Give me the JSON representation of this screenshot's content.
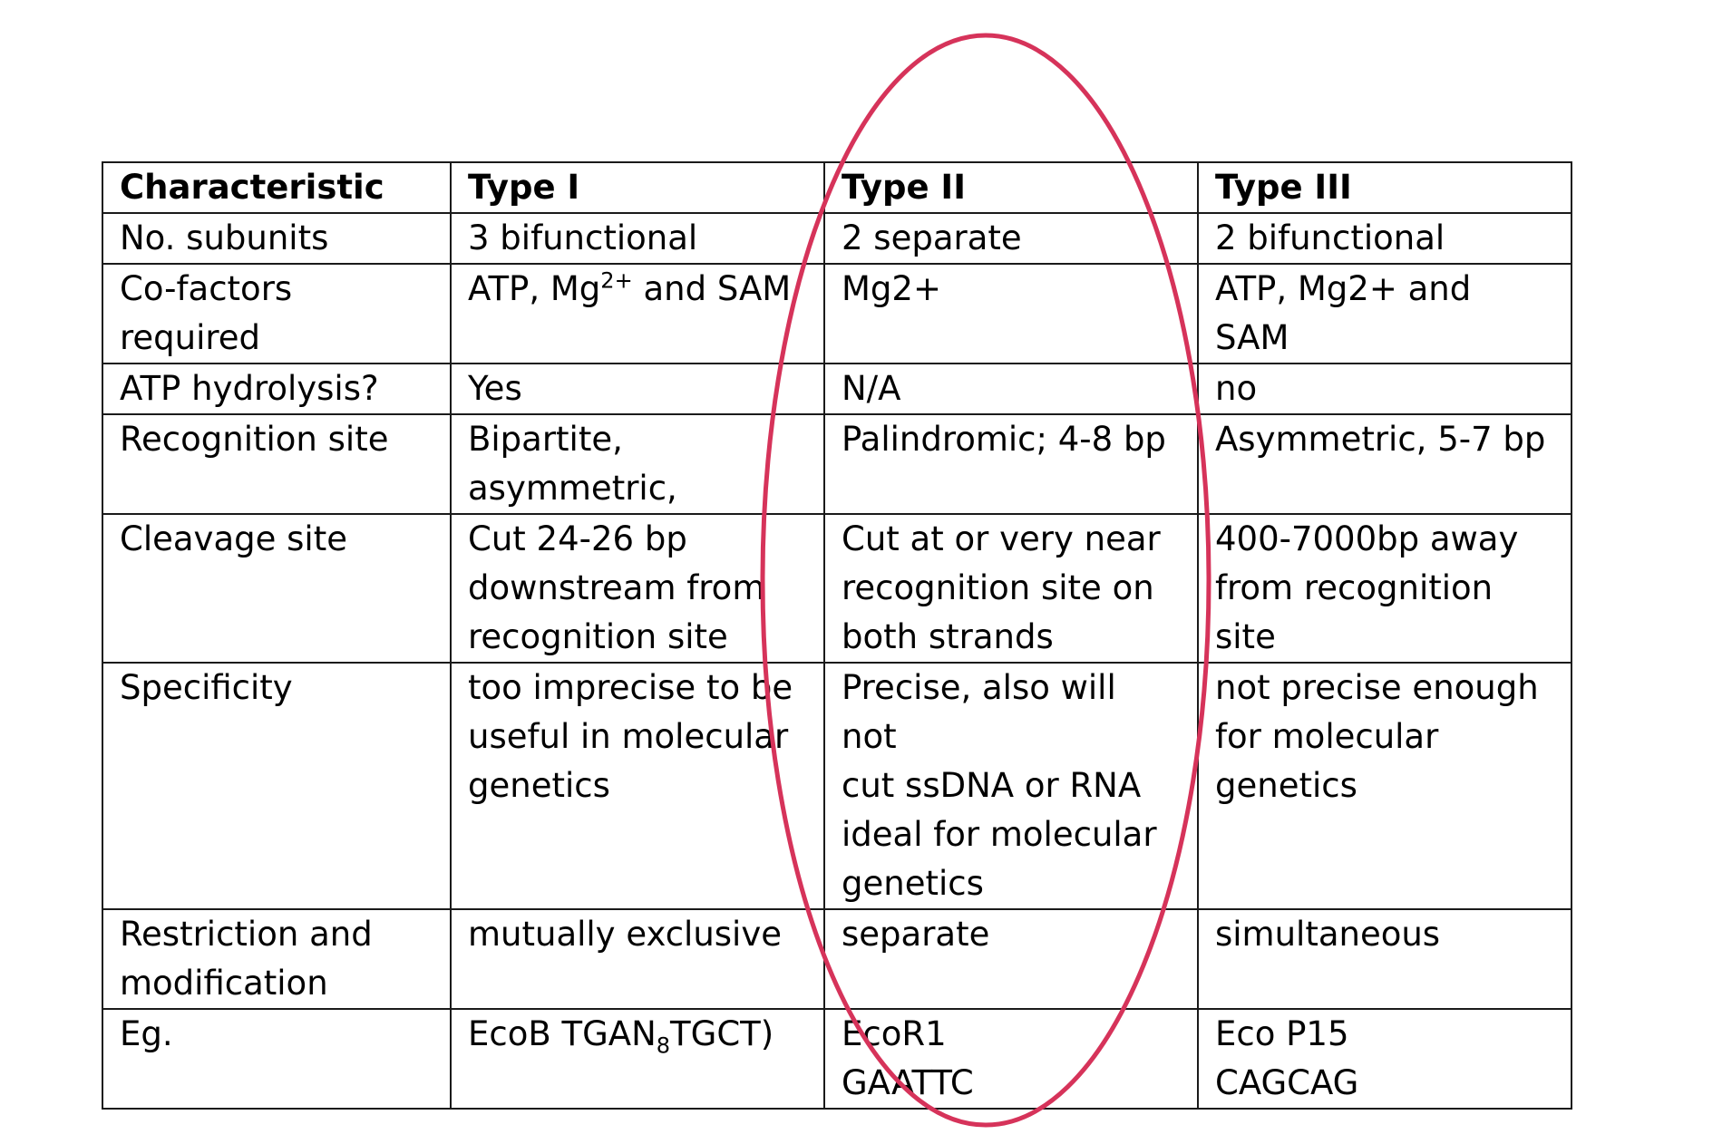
{
  "table": {
    "header": [
      "Characteristic",
      "Type I",
      "Type II",
      "Type III"
    ],
    "rows": [
      {
        "label": "No. subunits",
        "type1": "3 bifunctional",
        "type2": "2 separate",
        "type3": "2 bifunctional"
      },
      {
        "label": "Co-factors\nrequired",
        "type1_prefix": "ATP, Mg",
        "type1_sup": "2+",
        "type1_suffix": " and SAM",
        "type2": "Mg2+",
        "type3": "ATP, Mg2+ and SAM"
      },
      {
        "label": "ATP hydrolysis?",
        "type1": "Yes",
        "type2": "N/A",
        "type3": "no"
      },
      {
        "label": "Recognition site",
        "type1": "Bipartite,\nasymmetric,",
        "type2": "Palindromic; 4-8 bp",
        "type3": "Asymmetric, 5-7 bp"
      },
      {
        "label": "Cleavage site",
        "type1": "Cut 24-26 bp\ndownstream from\nrecognition site",
        "type2": "Cut at or very near\nrecognition site on\nboth strands",
        "type3": "400-7000bp away\nfrom recognition\nsite"
      },
      {
        "label": "Specificity",
        "type1": "too imprecise to be\nuseful in molecular\ngenetics",
        "type2": "Precise, also will not\ncut ssDNA or RNA\nideal for molecular\ngenetics",
        "type3": "not precise enough\nfor molecular\ngenetics"
      },
      {
        "label": "Restriction and\nmodification",
        "type1": "mutually exclusive",
        "type2": "separate",
        "type3": "simultaneous"
      },
      {
        "label": "Eg.",
        "type1_prefix": "EcoB TGAN",
        "type1_sub": "8",
        "type1_suffix": "TGCT)",
        "type2": "EcoR1\nGAATTC",
        "type3": "Eco P15\nCAGCAG"
      }
    ]
  },
  "annotation": {
    "color": "#d6335a"
  }
}
